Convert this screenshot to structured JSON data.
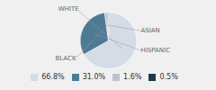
{
  "chart_data": {
    "type": "pie",
    "categories": [
      "WHITE",
      "HISPANIC",
      "BLACK",
      "ASIAN"
    ],
    "values": [
      66.8,
      31.0,
      1.6,
      0.5
    ],
    "value_labels": [
      "66.8%",
      "31.0%",
      "1.6%",
      "0.5%"
    ],
    "colors": [
      "#d4dce8",
      "#4e7a96",
      "#b8c4cf",
      "#1e3a4a"
    ],
    "legend": "bottom"
  }
}
